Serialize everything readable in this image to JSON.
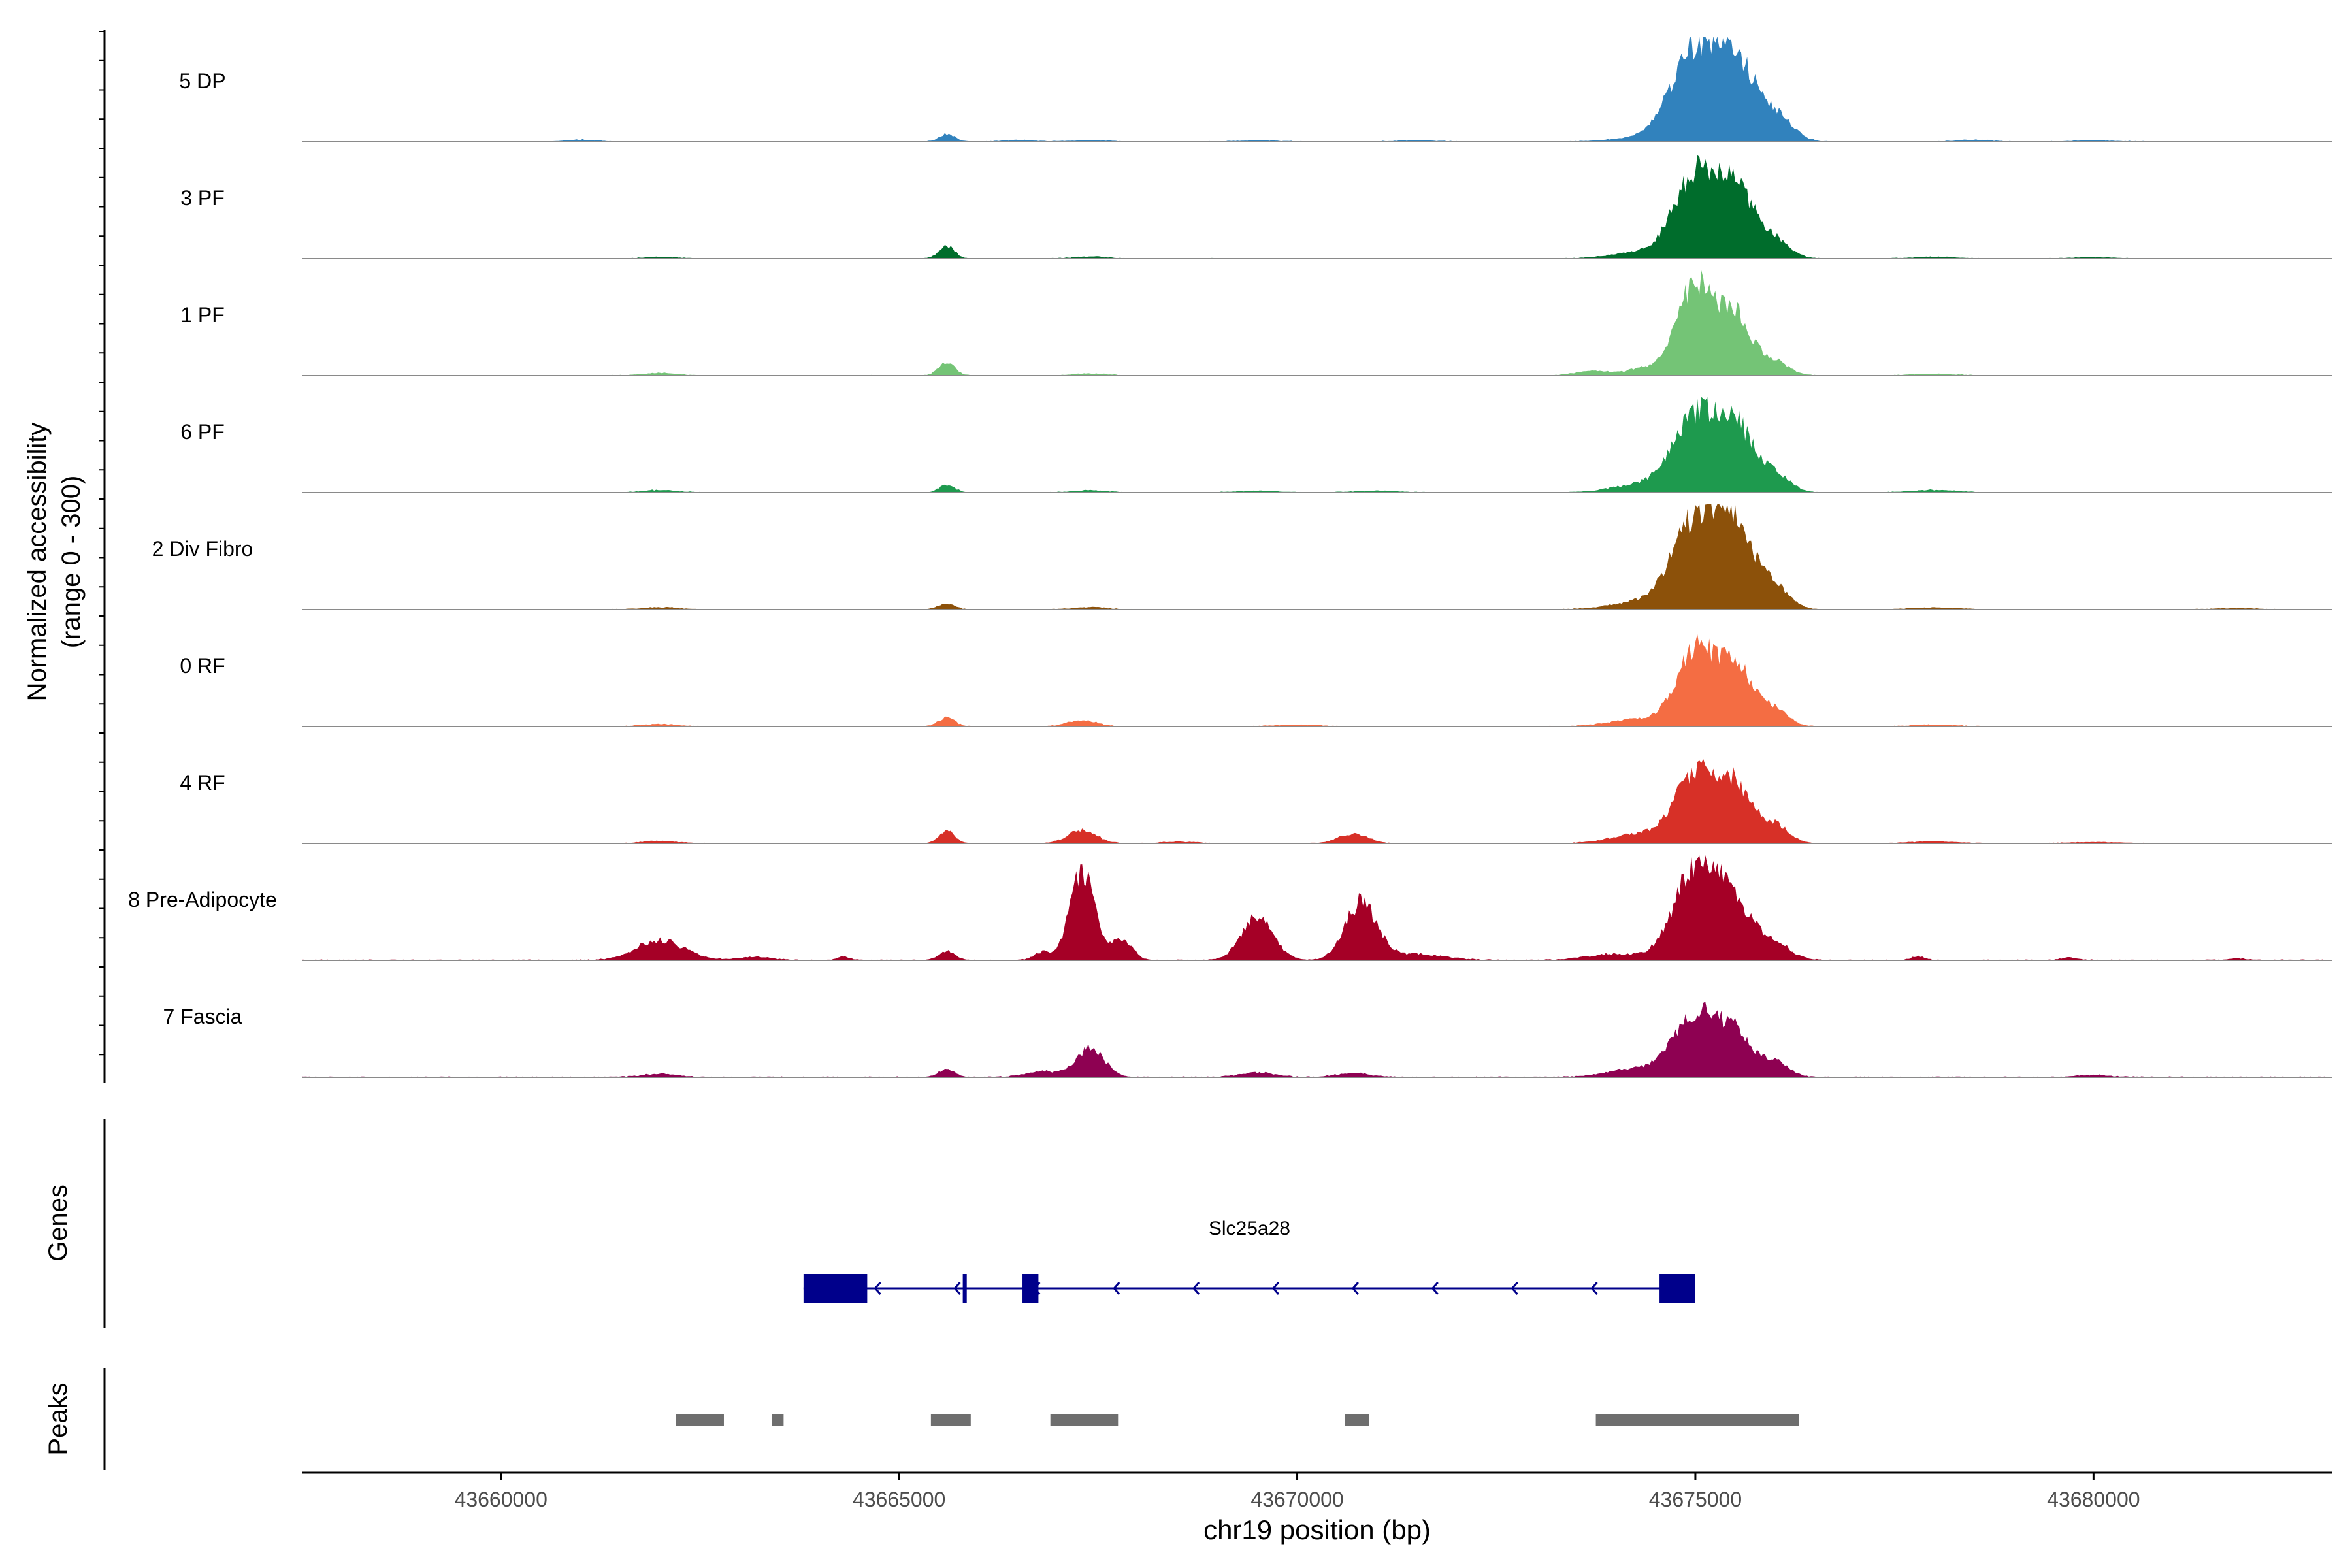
{
  "chart_data": {
    "type": "area",
    "title": "",
    "xlabel": "chr19 position (bp)",
    "xlim": [
      43657500,
      43683000
    ],
    "x_ticks": [
      43660000,
      43665000,
      43670000,
      43675000,
      43680000
    ],
    "x_tick_labels": [
      "43660000",
      "43665000",
      "43670000",
      "43675000",
      "43680000"
    ],
    "ylabel": "Normalized accessibility",
    "ylabel_range": "(range 0 - 300)",
    "ylim": [
      0,
      300
    ],
    "panel_labels": {
      "genes": "Genes",
      "peaks": "Peaks"
    },
    "tracks": [
      {
        "name": "5 DP",
        "color": "#3182BD",
        "peaks": [
          [
            43675000,
            300,
            420
          ],
          [
            43675500,
            240,
            330
          ],
          [
            43676000,
            90,
            300
          ],
          [
            43674300,
            12,
            500
          ],
          [
            43665600,
            25,
            140
          ],
          [
            43661000,
            6,
            300
          ],
          [
            43666500,
            5,
            300
          ],
          [
            43667400,
            5,
            300
          ],
          [
            43669500,
            4,
            400
          ],
          [
            43671500,
            4,
            400
          ],
          [
            43678500,
            6,
            300
          ],
          [
            43680000,
            4,
            400
          ]
        ],
        "base": 2
      },
      {
        "name": "3 PF",
        "color": "#006D2C",
        "peaks": [
          [
            43675000,
            270,
            380
          ],
          [
            43675500,
            230,
            320
          ],
          [
            43676000,
            60,
            260
          ],
          [
            43674300,
            20,
            500
          ],
          [
            43665600,
            40,
            140
          ],
          [
            43662000,
            5,
            300
          ],
          [
            43667400,
            6,
            300
          ],
          [
            43678000,
            5,
            400
          ],
          [
            43680000,
            4,
            400
          ]
        ],
        "base": 2
      },
      {
        "name": "1 PF",
        "color": "#74C476",
        "peaks": [
          [
            43675000,
            300,
            320
          ],
          [
            43675500,
            190,
            300
          ],
          [
            43676000,
            45,
            240
          ],
          [
            43673700,
            15,
            300
          ],
          [
            43674400,
            25,
            350
          ],
          [
            43665600,
            45,
            140
          ],
          [
            43662000,
            8,
            300
          ],
          [
            43667400,
            6,
            300
          ],
          [
            43678000,
            5,
            400
          ]
        ],
        "base": 2
      },
      {
        "name": "6 PF",
        "color": "#1E9A4E",
        "peaks": [
          [
            43675000,
            240,
            400
          ],
          [
            43675500,
            200,
            330
          ],
          [
            43676000,
            60,
            260
          ],
          [
            43674300,
            25,
            500
          ],
          [
            43665600,
            25,
            140
          ],
          [
            43662000,
            8,
            300
          ],
          [
            43667400,
            7,
            300
          ],
          [
            43669500,
            5,
            400
          ],
          [
            43671000,
            5,
            400
          ],
          [
            43678000,
            8,
            400
          ]
        ],
        "base": 2
      },
      {
        "name": "2 Div Fibro",
        "color": "#8C510A",
        "peaks": [
          [
            43675000,
            290,
            400
          ],
          [
            43675500,
            255,
            330
          ],
          [
            43676000,
            70,
            260
          ],
          [
            43674300,
            25,
            500
          ],
          [
            43665600,
            20,
            140
          ],
          [
            43662000,
            7,
            300
          ],
          [
            43667400,
            7,
            300
          ],
          [
            43678000,
            6,
            400
          ],
          [
            43681800,
            4,
            400
          ]
        ],
        "base": 2
      },
      {
        "name": "0 RF",
        "color": "#F46D43",
        "peaks": [
          [
            43675000,
            250,
            330
          ],
          [
            43675500,
            200,
            300
          ],
          [
            43676000,
            55,
            240
          ],
          [
            43674300,
            25,
            500
          ],
          [
            43665600,
            30,
            140
          ],
          [
            43667300,
            20,
            250
          ],
          [
            43662000,
            7,
            300
          ],
          [
            43670000,
            5,
            400
          ],
          [
            43678000,
            5,
            400
          ]
        ],
        "base": 2
      },
      {
        "name": "4 RF",
        "color": "#D73027",
        "peaks": [
          [
            43675000,
            230,
            360
          ],
          [
            43675500,
            180,
            300
          ],
          [
            43676000,
            60,
            240
          ],
          [
            43674300,
            30,
            500
          ],
          [
            43665600,
            40,
            140
          ],
          [
            43667300,
            45,
            250
          ],
          [
            43670700,
            32,
            250
          ],
          [
            43662000,
            8,
            300
          ],
          [
            43668500,
            5,
            300
          ],
          [
            43678000,
            6,
            400
          ],
          [
            43680000,
            4,
            400
          ]
        ],
        "base": 2
      },
      {
        "name": "8 Pre-Adipocyte",
        "color": "#A50026",
        "peaks": [
          [
            43675000,
            300,
            380
          ],
          [
            43675500,
            170,
            330
          ],
          [
            43676000,
            50,
            280
          ],
          [
            43674000,
            20,
            500
          ],
          [
            43667300,
            290,
            220
          ],
          [
            43666800,
            25,
            150
          ],
          [
            43667800,
            70,
            180
          ],
          [
            43669500,
            140,
            280
          ],
          [
            43670800,
            190,
            280
          ],
          [
            43662000,
            65,
            420
          ],
          [
            43665600,
            30,
            140
          ],
          [
            43664300,
            10,
            120
          ],
          [
            43671500,
            20,
            500
          ],
          [
            43677800,
            12,
            120
          ],
          [
            43679700,
            8,
            150
          ],
          [
            43681800,
            7,
            120
          ],
          [
            43663200,
            10,
            300
          ]
        ],
        "base": 3
      },
      {
        "name": "7 Fascia",
        "color": "#8E0152",
        "peaks": [
          [
            43675000,
            210,
            360
          ],
          [
            43675500,
            140,
            300
          ],
          [
            43676000,
            50,
            240
          ],
          [
            43674300,
            30,
            500
          ],
          [
            43667400,
            95,
            250
          ],
          [
            43666800,
            18,
            300
          ],
          [
            43665600,
            25,
            140
          ],
          [
            43669500,
            15,
            300
          ],
          [
            43670700,
            12,
            300
          ],
          [
            43662000,
            10,
            300
          ],
          [
            43680000,
            6,
            300
          ]
        ],
        "base": 3
      }
    ],
    "genes": [
      {
        "name": "Slc25a28",
        "strand": "-",
        "start": 43663800,
        "end": 43675000,
        "exons": [
          [
            43663800,
            43664600
          ],
          [
            43665800,
            43665850
          ],
          [
            43666550,
            43666750
          ],
          [
            43674550,
            43675000
          ]
        ]
      }
    ],
    "peaks": [
      [
        43662200,
        43662800
      ],
      [
        43663400,
        43663550
      ],
      [
        43665400,
        43665900
      ],
      [
        43666900,
        43667750
      ],
      [
        43670600,
        43670900
      ],
      [
        43673750,
        43676300
      ]
    ]
  }
}
